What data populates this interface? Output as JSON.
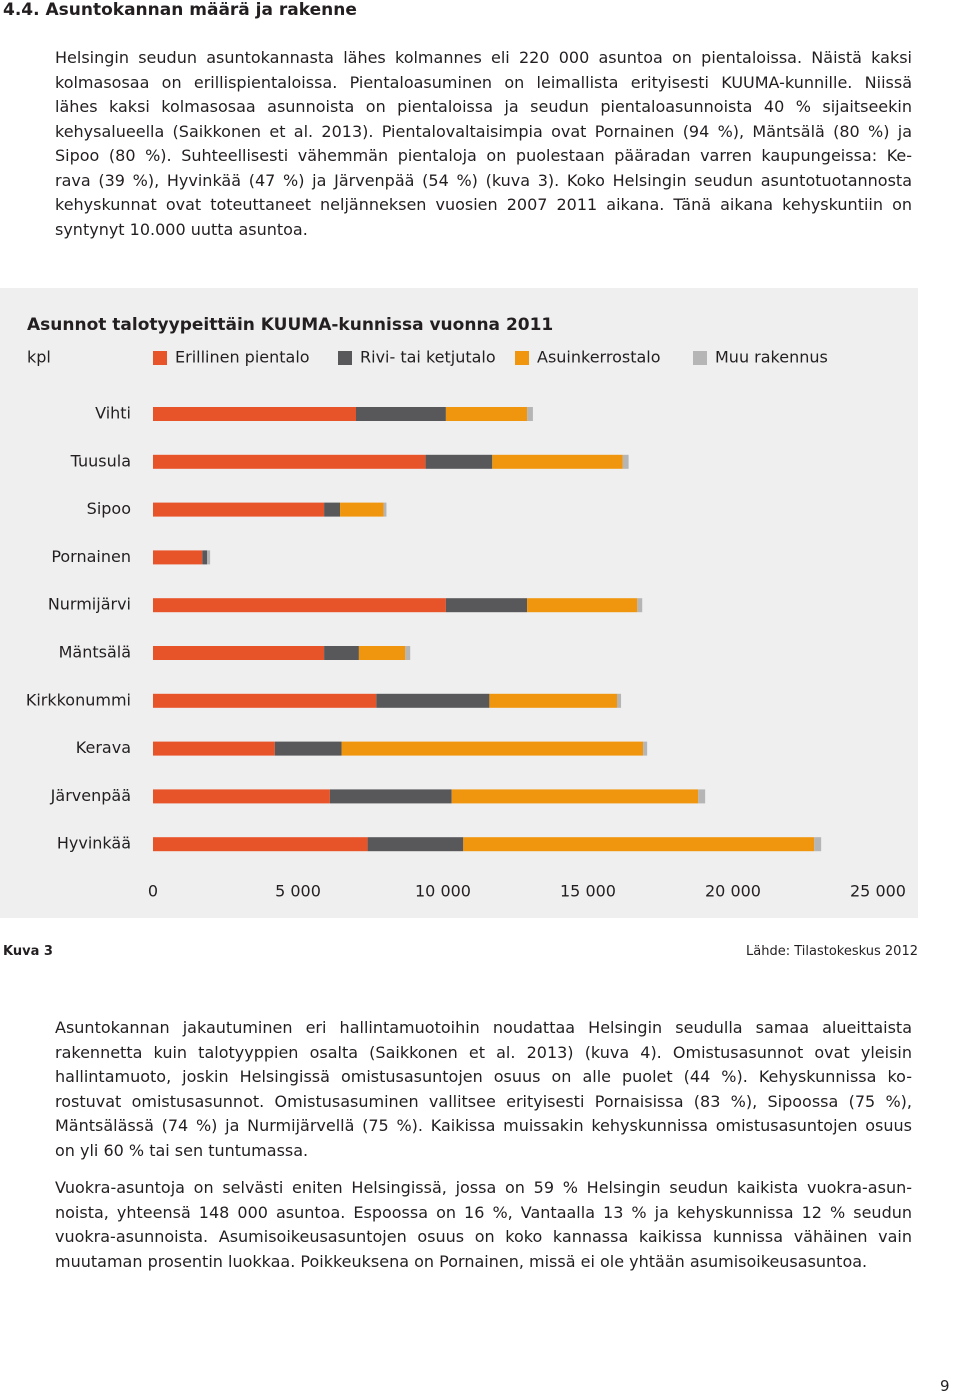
{
  "heading": "4.4. Asuntokannan määrä ja rakenne",
  "paragraphs": [
    [
      "Helsingin seudun asuntokannasta lähes kolmannes eli 220 000 asuntoa on pientaloissa. Näistä kaksi",
      "kolmasosaa on erillispientaloissa. Pientaloasuminen on leimallista erityisesti KUUMA-kunnille. Niissä",
      "lähes kaksi kolmasosaa asunnoista on pientaloissa ja seudun pientaloasunnoista 40 % sijaitseekin",
      "kehysalueella (Saikkonen et al. 2013). Pientalovaltaisimpia ovat Pornainen (94 %), Mäntsälä (80 %) ja",
      "Sipoo (80 %). Suhteellisesti vähemmän pientaloja on puolestaan pääradan varren kaupungeissa: Ke-",
      "rava (39 %), Hyvinkää (47 %) ja Järvenpää (54 %) (kuva 3). Koko Helsingin seudun asuntotuotannosta",
      "kehyskunnat ovat toteuttaneet neljänneksen vuosien 2007 2011 aikana. Tänä aikana kehyskuntiin on",
      "syntynyt 10.000 uutta asuntoa."
    ],
    [
      "Asuntokannan jakautuminen eri hallintamuotoihin noudattaa Helsingin seudulla samaa alueittaista",
      "rakennetta kuin talotyyppien osalta (Saikkonen et al. 2013) (kuva 4). Omistusasunnot ovat yleisin",
      "hallintamuoto, joskin Helsingissä omistusasuntojen osuus on alle puolet (44 %). Kehyskunnissa ko-",
      "rostuvat omistusasunnot. Omistusasuminen vallitsee erityisesti Pornaisissa (83 %), Sipoossa (75 %),",
      "Mäntsälässä (74 %) ja Nurmijärvellä (75 %). Kaikissa muissakin kehyskunnissa omistusasuntojen osuus",
      "on yli 60 % tai sen tuntumassa."
    ],
    [
      "Vuokra-asuntoja on selvästi eniten Helsingissä, jossa on 59 % Helsingin seudun kaikista vuokra-asun-",
      "noista, yhteensä 148 000 asuntoa. Espoossa on 16 %, Vantaalla 13 % ja kehyskunnissa 12 % seudun",
      "vuokra-asunnoista. Asumisoikeusasuntojen osuus on koko kannassa kaikissa kunnissa vähäinen vain",
      "muutaman prosentin luokkaa. Poikkeuksena on Pornainen, missä ei ole yhtään asumisoikeusasuntoa."
    ]
  ],
  "figure": {
    "label": "Kuva 3",
    "source": "Lähde: Tilastokeskus 2012"
  },
  "page_number": "9",
  "chart_data": {
    "type": "stacked-bar-horizontal",
    "title": "Asunnot talotyypeittäin KUUMA-kunnissa vuonna 2011",
    "xlabel": "kpl",
    "categories": [
      "Vihti",
      "Tuusula",
      "Sipoo",
      "Pornainen",
      "Nurmijärvi",
      "Mäntsälä",
      "Kirkkonummi",
      "Kerava",
      "Järvenpää",
      "Hyvinkää"
    ],
    "series": [
      {
        "name": "Erillinen pientalo",
        "color": "#e8542a",
        "values": [
          7000,
          9400,
          5900,
          1700,
          10100,
          5900,
          7700,
          4200,
          6100,
          7400
        ]
      },
      {
        "name": "Rivi- tai ketjutalo",
        "color": "#58585a",
        "values": [
          3100,
          2300,
          550,
          170,
          2800,
          1200,
          3900,
          2300,
          4200,
          3300
        ]
      },
      {
        "name": "Asuinkerrostalo",
        "color": "#f0960e",
        "values": [
          2800,
          4500,
          1500,
          0,
          3800,
          1600,
          4400,
          10400,
          8500,
          12100
        ]
      },
      {
        "name": "Muu rakennus",
        "color": "#b5b5b5",
        "values": [
          200,
          200,
          100,
          100,
          170,
          170,
          140,
          140,
          240,
          240
        ]
      }
    ],
    "xlim": [
      0,
      25000
    ],
    "xticks": [
      0,
      {
        "value": 5000,
        "label": "5 000"
      },
      {
        "value": 10000,
        "label": "10 000"
      },
      {
        "value": 15000,
        "label": "15 000"
      },
      {
        "value": 20000,
        "label": "20 000"
      },
      {
        "value": 25000,
        "label": "25 000"
      }
    ],
    "grid": false,
    "background": "#efefef"
  }
}
